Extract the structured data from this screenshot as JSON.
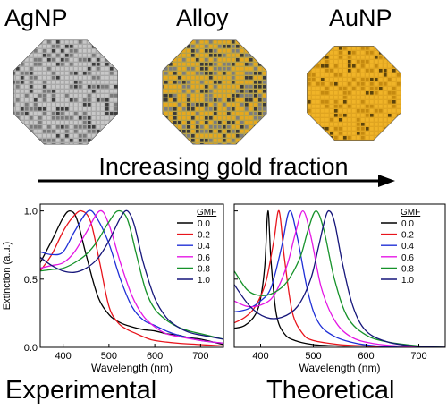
{
  "particles": [
    {
      "label": "AgNP",
      "icon": "silver-nanoparticle-icon",
      "base_color": "#a9a9a9",
      "dot_color": "#5a5a5a"
    },
    {
      "label": "Alloy",
      "icon": "alloy-nanoparticle-icon",
      "base_color": "#b7a24a",
      "dot_color": "#e6a81e"
    },
    {
      "label": "AuNP",
      "icon": "gold-nanoparticle-icon",
      "base_color": "#e0a521",
      "dot_color": "#8a6410"
    }
  ],
  "arrow_label": "Increasing gold fraction",
  "panels": {
    "experimental": {
      "caption": "Experimental"
    },
    "theoretical": {
      "caption": "Theoretical"
    }
  },
  "chart_data": [
    {
      "type": "line",
      "title": "",
      "xlabel": "Wavelength (nm)",
      "ylabel": "Extinction (a.u.)",
      "xlim": [
        350,
        750
      ],
      "ylim": [
        0.0,
        1.05
      ],
      "xticks": [
        400,
        500,
        600,
        700
      ],
      "yticks": [
        0.0,
        0.5,
        1.0
      ],
      "legend_title": "GMF",
      "legend_position": "top-right",
      "grid": false,
      "series": [
        {
          "name": "0.0",
          "color": "#000000",
          "x": [
            350,
            375,
            400,
            415,
            430,
            450,
            475,
            500,
            525,
            550,
            575,
            600,
            625,
            650,
            675,
            700,
            750
          ],
          "y": [
            0.62,
            0.78,
            0.95,
            1.0,
            0.94,
            0.68,
            0.38,
            0.24,
            0.18,
            0.15,
            0.13,
            0.12,
            0.1,
            0.09,
            0.07,
            0.06,
            0.02
          ]
        },
        {
          "name": "0.2",
          "color": "#e8141c",
          "x": [
            350,
            375,
            400,
            420,
            440,
            460,
            480,
            500,
            520,
            540,
            560,
            580,
            600,
            650,
            700,
            750
          ],
          "y": [
            0.56,
            0.68,
            0.85,
            0.95,
            1.0,
            0.92,
            0.62,
            0.3,
            0.18,
            0.13,
            0.1,
            0.07,
            0.05,
            0.03,
            0.02,
            0.01
          ]
        },
        {
          "name": "0.4",
          "color": "#1f2fd6",
          "x": [
            350,
            375,
            400,
            425,
            455,
            475,
            500,
            525,
            550,
            575,
            600,
            625,
            650,
            700,
            750
          ],
          "y": [
            0.7,
            0.68,
            0.7,
            0.85,
            1.0,
            0.94,
            0.76,
            0.5,
            0.3,
            0.2,
            0.16,
            0.12,
            0.09,
            0.05,
            0.03
          ]
        },
        {
          "name": "0.6",
          "color": "#e416e4",
          "x": [
            350,
            375,
            400,
            425,
            450,
            480,
            500,
            525,
            550,
            575,
            600,
            625,
            650,
            700,
            750
          ],
          "y": [
            0.58,
            0.6,
            0.62,
            0.7,
            0.84,
            1.0,
            0.9,
            0.62,
            0.38,
            0.23,
            0.15,
            0.1,
            0.08,
            0.05,
            0.03
          ]
        },
        {
          "name": "0.8",
          "color": "#16922a",
          "x": [
            350,
            375,
            400,
            425,
            450,
            475,
            500,
            520,
            540,
            560,
            580,
            600,
            625,
            650,
            675,
            700,
            750
          ],
          "y": [
            0.56,
            0.57,
            0.58,
            0.62,
            0.68,
            0.78,
            0.92,
            1.0,
            0.94,
            0.68,
            0.42,
            0.28,
            0.2,
            0.15,
            0.12,
            0.1,
            0.06
          ]
        },
        {
          "name": "1.0",
          "color": "#15157a",
          "x": [
            350,
            375,
            400,
            425,
            450,
            475,
            500,
            525,
            540,
            555,
            575,
            600,
            625,
            650,
            675,
            700,
            750
          ],
          "y": [
            0.66,
            0.6,
            0.56,
            0.55,
            0.58,
            0.65,
            0.78,
            0.95,
            1.0,
            0.9,
            0.62,
            0.36,
            0.22,
            0.15,
            0.11,
            0.09,
            0.06
          ]
        }
      ]
    },
    {
      "type": "line",
      "title": "",
      "xlabel": "Wavelength (nm)",
      "ylabel": "",
      "xlim": [
        350,
        750
      ],
      "ylim": [
        0.0,
        1.05
      ],
      "xticks": [
        400,
        500,
        600,
        700
      ],
      "yticks": [
        0.0,
        0.5,
        1.0
      ],
      "legend_title": "GMF",
      "legend_position": "top-right",
      "grid": false,
      "series": [
        {
          "name": "0.0",
          "color": "#000000",
          "x": [
            350,
            370,
            390,
            400,
            408,
            414,
            420,
            430,
            445,
            465,
            500,
            550,
            600,
            650,
            700,
            750
          ],
          "y": [
            0.14,
            0.16,
            0.24,
            0.36,
            0.6,
            1.0,
            0.62,
            0.24,
            0.1,
            0.05,
            0.02,
            0.01,
            0.01,
            0.0,
            0.0,
            0.0
          ]
        },
        {
          "name": "0.2",
          "color": "#e8141c",
          "x": [
            350,
            370,
            390,
            410,
            425,
            435,
            445,
            460,
            480,
            500,
            550,
            600,
            650,
            700,
            750
          ],
          "y": [
            0.18,
            0.22,
            0.3,
            0.48,
            0.78,
            1.0,
            0.66,
            0.26,
            0.1,
            0.05,
            0.02,
            0.01,
            0.0,
            0.0,
            0.0
          ]
        },
        {
          "name": "0.4",
          "color": "#1f2fd6",
          "x": [
            350,
            375,
            400,
            420,
            440,
            455,
            470,
            490,
            510,
            540,
            580,
            620,
            680,
            750
          ],
          "y": [
            0.26,
            0.28,
            0.34,
            0.44,
            0.74,
            1.0,
            0.8,
            0.4,
            0.18,
            0.08,
            0.03,
            0.01,
            0.0,
            0.0
          ]
        },
        {
          "name": "0.6",
          "color": "#e416e4",
          "x": [
            350,
            375,
            400,
            425,
            450,
            465,
            480,
            495,
            515,
            540,
            570,
            610,
            660,
            750
          ],
          "y": [
            0.34,
            0.3,
            0.31,
            0.38,
            0.6,
            0.82,
            1.0,
            0.82,
            0.44,
            0.2,
            0.08,
            0.03,
            0.01,
            0.0
          ]
        },
        {
          "name": "0.8",
          "color": "#16922a",
          "x": [
            350,
            375,
            400,
            425,
            450,
            475,
            490,
            505,
            520,
            540,
            565,
            600,
            640,
            700,
            750
          ],
          "y": [
            0.56,
            0.42,
            0.38,
            0.4,
            0.48,
            0.66,
            0.86,
            1.0,
            0.86,
            0.5,
            0.22,
            0.09,
            0.04,
            0.01,
            0.0
          ]
        },
        {
          "name": "1.0",
          "color": "#15157a",
          "x": [
            350,
            380,
            410,
            440,
            470,
            495,
            510,
            522,
            530,
            540,
            555,
            575,
            600,
            640,
            690,
            750
          ],
          "y": [
            0.46,
            0.3,
            0.22,
            0.22,
            0.3,
            0.5,
            0.74,
            0.94,
            1.0,
            0.92,
            0.62,
            0.3,
            0.12,
            0.04,
            0.01,
            0.0
          ]
        }
      ]
    }
  ]
}
